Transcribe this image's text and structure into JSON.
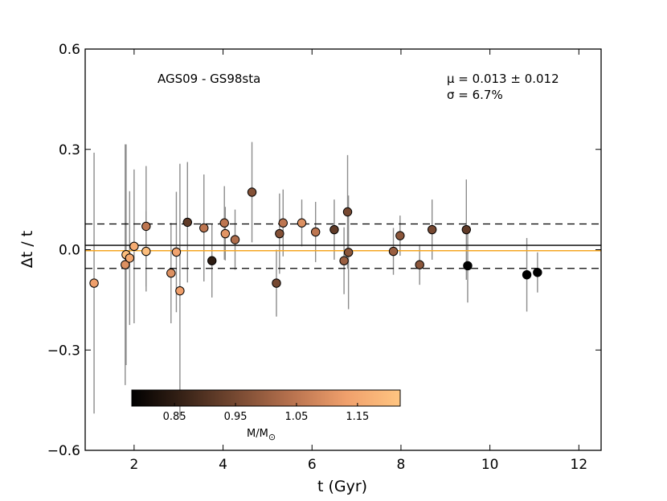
{
  "chart_data": {
    "type": "scatter",
    "title": "",
    "xlabel": "t (Gyr)",
    "ylabel": "Δt / t",
    "xlim": [
      0.9,
      12.5
    ],
    "ylim": [
      -0.6,
      0.6
    ],
    "xticks": [
      2,
      4,
      6,
      8,
      10,
      12
    ],
    "xtick_labels": [
      "2",
      "4",
      "6",
      "8",
      "10",
      "12"
    ],
    "yticks": [
      -0.6,
      -0.3,
      0.0,
      0.3,
      0.6
    ],
    "ytick_labels": [
      "−0.6",
      "−0.3",
      "0.0",
      "0.3",
      "0.6"
    ],
    "annotation_title": "AGS09 - GS98sta",
    "stats": {
      "mu_label": "μ = 0.013 ± 0.012",
      "sigma_label": "σ = 6.7%"
    },
    "reference_lines": {
      "mean": 0.013,
      "zero": -0.003,
      "sigma_upper": 0.077,
      "sigma_lower": -0.056,
      "mean_color": "#222222",
      "zero_color": "#f5a623"
    },
    "colorbar": {
      "label": "M/M",
      "label_symbol": "⊙",
      "range": [
        0.78,
        1.22
      ],
      "ticks": [
        0.85,
        0.95,
        1.05,
        1.15
      ],
      "tick_labels": [
        "0.85",
        "0.95",
        "1.05",
        "1.15"
      ],
      "colormap_stops": [
        "#000000",
        "#3a2418",
        "#7a4b33",
        "#b9734f",
        "#f0a06c",
        "#ffc581"
      ]
    },
    "points": [
      {
        "x": 1.1,
        "y": -0.1,
        "err": 0.39,
        "mass": 1.13
      },
      {
        "x": 1.8,
        "y": -0.045,
        "err": 0.36,
        "mass": 1.1
      },
      {
        "x": 1.82,
        "y": -0.015,
        "err": 0.33,
        "mass": 1.2
      },
      {
        "x": 1.9,
        "y": -0.025,
        "err": 0.2,
        "mass": 1.15
      },
      {
        "x": 2.0,
        "y": 0.01,
        "err": 0.23,
        "mass": 1.16
      },
      {
        "x": 2.27,
        "y": 0.07,
        "err": 0.18,
        "mass": 1.05
      },
      {
        "x": 2.27,
        "y": -0.005,
        "err": 0.12,
        "mass": 1.2
      },
      {
        "x": 2.83,
        "y": -0.07,
        "err": 0.15,
        "mass": 1.1
      },
      {
        "x": 2.95,
        "y": -0.007,
        "err": 0.18,
        "mass": 1.14
      },
      {
        "x": 3.03,
        "y": -0.123,
        "err": 0.38,
        "mass": 1.13
      },
      {
        "x": 3.2,
        "y": 0.082,
        "err": 0.18,
        "mass": 0.92
      },
      {
        "x": 3.57,
        "y": 0.065,
        "err": 0.16,
        "mass": 1.05
      },
      {
        "x": 3.75,
        "y": -0.033,
        "err": 0.11,
        "mass": 0.85
      },
      {
        "x": 4.03,
        "y": 0.08,
        "err": 0.11,
        "mass": 1.05
      },
      {
        "x": 4.05,
        "y": 0.048,
        "err": 0.08,
        "mass": 1.11
      },
      {
        "x": 4.27,
        "y": 0.03,
        "err": 0.09,
        "mass": 1.03
      },
      {
        "x": 4.65,
        "y": 0.172,
        "err": 0.15,
        "mass": 0.97
      },
      {
        "x": 5.2,
        "y": -0.1,
        "err": 0.1,
        "mass": 0.95
      },
      {
        "x": 5.27,
        "y": 0.048,
        "err": 0.12,
        "mass": 0.97
      },
      {
        "x": 5.35,
        "y": 0.08,
        "err": 0.1,
        "mass": 1.05
      },
      {
        "x": 5.77,
        "y": 0.08,
        "err": 0.07,
        "mass": 1.1
      },
      {
        "x": 6.08,
        "y": 0.053,
        "err": 0.09,
        "mass": 1.05
      },
      {
        "x": 6.5,
        "y": 0.06,
        "err": 0.09,
        "mass": 0.92
      },
      {
        "x": 6.72,
        "y": -0.033,
        "err": 0.1,
        "mass": 1.0
      },
      {
        "x": 6.8,
        "y": 0.113,
        "err": 0.17,
        "mass": 0.95
      },
      {
        "x": 6.82,
        "y": -0.008,
        "err": 0.17,
        "mass": 0.98
      },
      {
        "x": 7.83,
        "y": -0.005,
        "err": 0.07,
        "mass": 1.0
      },
      {
        "x": 7.98,
        "y": 0.042,
        "err": 0.06,
        "mass": 0.98
      },
      {
        "x": 8.42,
        "y": -0.045,
        "err": 0.06,
        "mass": 0.98
      },
      {
        "x": 8.7,
        "y": 0.06,
        "err": 0.09,
        "mass": 0.95
      },
      {
        "x": 9.47,
        "y": 0.06,
        "err": 0.15,
        "mass": 0.92
      },
      {
        "x": 9.5,
        "y": -0.048,
        "err": 0.11,
        "mass": 0.78
      },
      {
        "x": 10.83,
        "y": -0.075,
        "err": 0.11,
        "mass": 0.78
      },
      {
        "x": 11.07,
        "y": -0.068,
        "err": 0.06,
        "mass": 0.78
      }
    ]
  }
}
